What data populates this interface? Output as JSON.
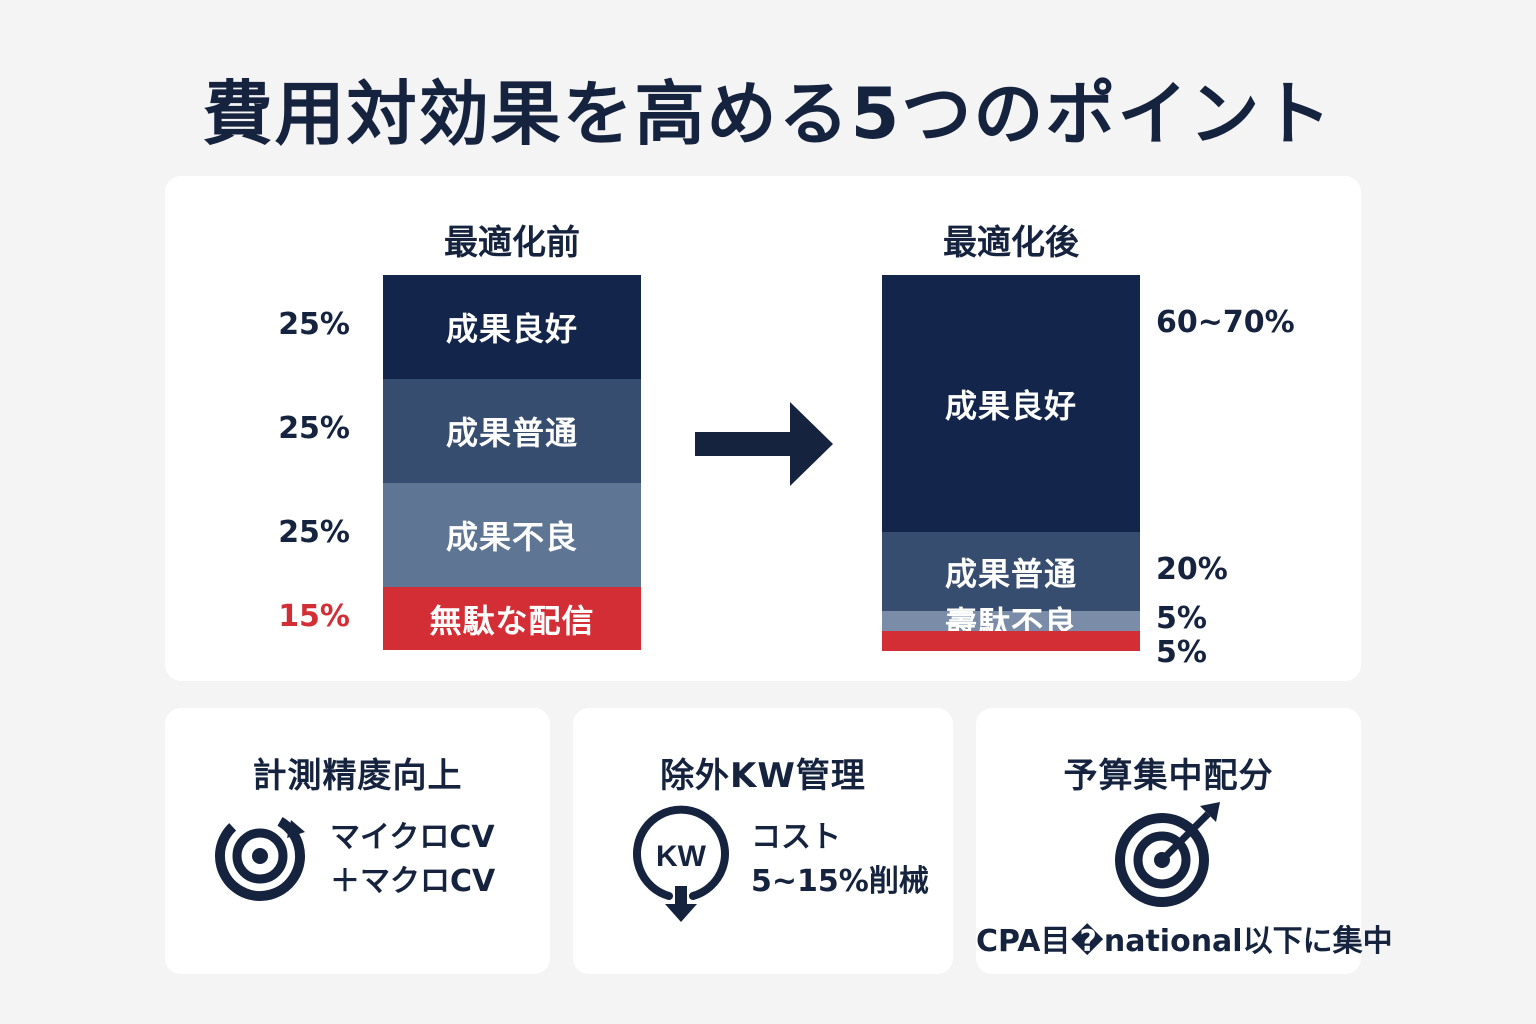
{
  "title": "費用対効果を高める5つのポイント",
  "colors": {
    "navy_dark": "#13254a",
    "navy_mid": "#374d70",
    "navy_light": "#5f7594",
    "slate_light": "#7a8ca7",
    "red": "#d32e35",
    "text": "#16233f"
  },
  "chart_data": [
    {
      "type": "bar",
      "subtype": "100%-stacked",
      "title": "最適化前",
      "segments": [
        {
          "name": "成果良好",
          "label": "25%",
          "value": 25,
          "color": "#13254a"
        },
        {
          "name": "成果普通",
          "label": "25%",
          "value": 25,
          "color": "#374d70"
        },
        {
          "name": "成果不良",
          "label": "25%",
          "value": 25,
          "color": "#5f7594"
        },
        {
          "name": "無駄な配信",
          "label": "15%",
          "value": 15,
          "color": "#d32e35"
        }
      ]
    },
    {
      "type": "bar",
      "subtype": "100%-stacked",
      "title": "最適化後",
      "segments": [
        {
          "name": "成果良好",
          "label": "60~70%",
          "value": 65,
          "color": "#13254a"
        },
        {
          "name": "成果普通",
          "label": "20%",
          "value": 20,
          "color": "#374d70"
        },
        {
          "name": "燾駄不良",
          "label": "5%",
          "value": 5,
          "color": "#7a8ca7"
        },
        {
          "name": "",
          "label": "5%",
          "value": 5,
          "color": "#d32e35"
        }
      ]
    }
  ],
  "cards": [
    {
      "title": "計測精庱向上",
      "icon": "target-refresh-icon",
      "lines": [
        "マイクロCV",
        "＋マクロCV"
      ]
    },
    {
      "title": "除外KW管理",
      "icon": "kw-down-icon",
      "icon_text": "KW",
      "lines": [
        "コスト",
        "5~15%削械"
      ]
    },
    {
      "title": "予算集中配分",
      "icon": "target-arrow-icon",
      "lines": [
        "CPA目�national以下に集中"
      ]
    }
  ]
}
